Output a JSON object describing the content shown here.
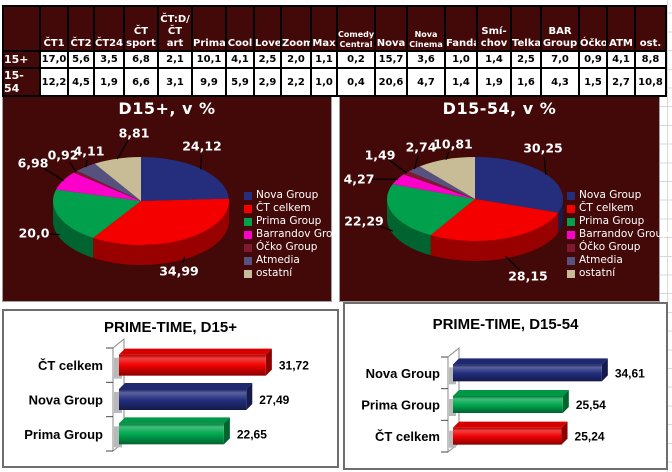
{
  "colors": {
    "panel_bg": "#430808",
    "table_grid": "#000000",
    "leader_line": "#000000",
    "nova_navy": "#252e7d",
    "ct_red": "#f40000",
    "prima_green": "#00a04d",
    "barrandov_magenta": "#fb00cb",
    "ocko_burgundy": "#7e1930",
    "atmedia_purple": "#56517f",
    "ostatni_tan": "#c8bc97",
    "bar_red": "#ee0000",
    "bar_navy": "#232e7e",
    "bar_green": "#00a84f"
  },
  "table": {
    "columns": [
      "ČT1",
      "ČT2",
      "ČT24",
      "ČT\nsport",
      "ČT:D/\nČT art",
      "Prima",
      "Cool",
      "Love",
      "Zoom",
      "Max",
      "Comedy\nCentral",
      "Nova",
      "Nova\nCinema",
      "Fanda",
      "Smí-\nchov",
      "Telka",
      "BAR\nGroup",
      "Óčko",
      "ATM",
      "ost."
    ],
    "rows": [
      {
        "label": "15+",
        "values": [
          "17,0",
          "5,6",
          "3,5",
          "6,8",
          "2,1",
          "10,1",
          "4,1",
          "2,5",
          "2,0",
          "1,1",
          "0,2",
          "15,7",
          "3,6",
          "1,0",
          "1,4",
          "2,5",
          "7,0",
          "0,9",
          "4,1",
          "8,8"
        ]
      },
      {
        "label": "15-54",
        "values": [
          "12,2",
          "4,5",
          "1,9",
          "6,6",
          "3,1",
          "9,9",
          "5,9",
          "2,9",
          "2,2",
          "1,0",
          "0,4",
          "20,6",
          "4,7",
          "1,4",
          "1,9",
          "1,6",
          "4,3",
          "1,5",
          "2,7",
          "10,8"
        ]
      }
    ]
  },
  "legend_labels": [
    "Nova Group",
    "ČT celkem",
    "Prima Group",
    "Barrandov Group",
    "Óčko Group",
    "Atmedia",
    "ostatní"
  ],
  "chart_data": [
    {
      "type": "pie",
      "title": "D15+, v %",
      "legend_position": "right",
      "slices": [
        {
          "name": "Nova Group",
          "value": 24.12,
          "label": "24,12",
          "color": "#252e7d"
        },
        {
          "name": "ČT celkem",
          "value": 34.99,
          "label": "34,99",
          "color": "#f40000"
        },
        {
          "name": "Prima Group",
          "value": 20.0,
          "label": "20,0",
          "color": "#00a04d"
        },
        {
          "name": "Barrandov Group",
          "value": 6.98,
          "label": "6,98",
          "color": "#fb00cb"
        },
        {
          "name": "Óčko Group",
          "value": 0.92,
          "label": "0,92",
          "color": "#7e1930"
        },
        {
          "name": "Atmedia",
          "value": 4.11,
          "label": "4,11",
          "color": "#56517f"
        },
        {
          "name": "ostatní",
          "value": 8.81,
          "label": "8,81",
          "color": "#c8bc97"
        }
      ]
    },
    {
      "type": "pie",
      "title": "D15-54, v %",
      "legend_position": "right",
      "slices": [
        {
          "name": "Nova Group",
          "value": 30.25,
          "label": "30,25",
          "color": "#252e7d"
        },
        {
          "name": "ČT celkem",
          "value": 28.15,
          "label": "28,15",
          "color": "#f40000"
        },
        {
          "name": "Prima Group",
          "value": 22.29,
          "label": "22,29",
          "color": "#00a04d"
        },
        {
          "name": "Barrandov Group",
          "value": 4.27,
          "label": "4,27",
          "color": "#fb00cb"
        },
        {
          "name": "Óčko Group",
          "value": 1.49,
          "label": "1,49",
          "color": "#7e1930"
        },
        {
          "name": "Atmedia",
          "value": 2.74,
          "label": "2,74",
          "color": "#56517f"
        },
        {
          "name": "ostatní",
          "value": 10.81,
          "label": "10,81",
          "color": "#c8bc97"
        }
      ]
    },
    {
      "type": "bar",
      "title": "PRIME-TIME, D15+",
      "orientation": "horizontal",
      "xlim": [
        0,
        36
      ],
      "categories": [
        "ČT celkem",
        "Nova Group",
        "Prima Group"
      ],
      "values": [
        31.72,
        27.49,
        22.65
      ],
      "value_labels": [
        "31,72",
        "27,49",
        "22,65"
      ],
      "bar_colors": [
        "#ee0000",
        "#232e7e",
        "#00a84f"
      ]
    },
    {
      "type": "bar",
      "title": "PRIME-TIME, D15-54",
      "orientation": "horizontal",
      "xlim": [
        0,
        40
      ],
      "categories": [
        "Nova Group",
        "Prima Group",
        "ČT celkem"
      ],
      "values": [
        34.61,
        25.54,
        25.24
      ],
      "value_labels": [
        "34,61",
        "25,54",
        "25,24"
      ],
      "bar_colors": [
        "#232e7e",
        "#00a84f",
        "#ee0000"
      ]
    }
  ]
}
